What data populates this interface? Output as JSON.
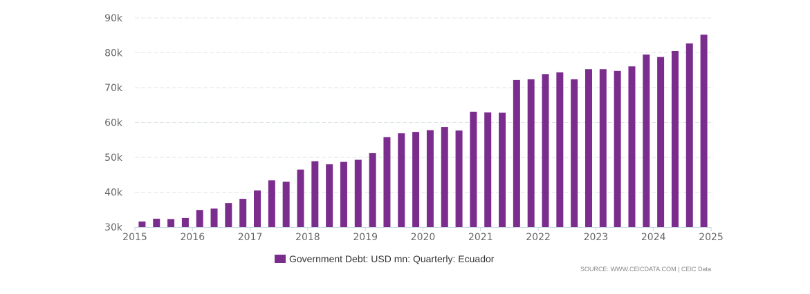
{
  "colors": {
    "bar": "#7b2d8e",
    "grid": "#dfe6ea",
    "axis": "#c8d6e0",
    "label": "#666666"
  },
  "chart_data": {
    "type": "bar",
    "title": "",
    "xlabel": "",
    "ylabel": "",
    "ylim": [
      30000,
      90000
    ],
    "y_ticks": [
      {
        "value": 30000,
        "label": "30k"
      },
      {
        "value": 40000,
        "label": "40k"
      },
      {
        "value": 50000,
        "label": "50k"
      },
      {
        "value": 60000,
        "label": "60k"
      },
      {
        "value": 70000,
        "label": "70k"
      },
      {
        "value": 80000,
        "label": "80k"
      },
      {
        "value": 90000,
        "label": "90k"
      }
    ],
    "x_ticks": [
      {
        "value": 2015,
        "label": "2015"
      },
      {
        "value": 2016,
        "label": "2016"
      },
      {
        "value": 2017,
        "label": "2017"
      },
      {
        "value": 2018,
        "label": "2018"
      },
      {
        "value": 2019,
        "label": "2019"
      },
      {
        "value": 2020,
        "label": "2020"
      },
      {
        "value": 2021,
        "label": "2021"
      },
      {
        "value": 2022,
        "label": "2022"
      },
      {
        "value": 2023,
        "label": "2023"
      },
      {
        "value": 2024,
        "label": "2024"
      },
      {
        "value": 2025,
        "label": "2025"
      }
    ],
    "x_range": [
      2015,
      2025
    ],
    "grid": true,
    "legend_position": "bottom-center",
    "series": [
      {
        "name": "Government Debt: USD mn: Quarterly: Ecuador",
        "points": [
          {
            "x": 2015.125,
            "y": 31600
          },
          {
            "x": 2015.375,
            "y": 32400
          },
          {
            "x": 2015.625,
            "y": 32300
          },
          {
            "x": 2015.875,
            "y": 32600
          },
          {
            "x": 2016.125,
            "y": 34900
          },
          {
            "x": 2016.375,
            "y": 35300
          },
          {
            "x": 2016.625,
            "y": 36900
          },
          {
            "x": 2016.875,
            "y": 38100
          },
          {
            "x": 2017.125,
            "y": 40500
          },
          {
            "x": 2017.375,
            "y": 43400
          },
          {
            "x": 2017.625,
            "y": 43000
          },
          {
            "x": 2017.875,
            "y": 46500
          },
          {
            "x": 2018.125,
            "y": 48900
          },
          {
            "x": 2018.375,
            "y": 48000
          },
          {
            "x": 2018.625,
            "y": 48700
          },
          {
            "x": 2018.875,
            "y": 49300
          },
          {
            "x": 2019.125,
            "y": 51200
          },
          {
            "x": 2019.375,
            "y": 55800
          },
          {
            "x": 2019.625,
            "y": 56900
          },
          {
            "x": 2019.875,
            "y": 57300
          },
          {
            "x": 2020.125,
            "y": 57800
          },
          {
            "x": 2020.375,
            "y": 58700
          },
          {
            "x": 2020.625,
            "y": 57700
          },
          {
            "x": 2020.875,
            "y": 63100
          },
          {
            "x": 2021.125,
            "y": 62900
          },
          {
            "x": 2021.375,
            "y": 62800
          },
          {
            "x": 2021.625,
            "y": 72200
          },
          {
            "x": 2021.875,
            "y": 72400
          },
          {
            "x": 2022.125,
            "y": 73900
          },
          {
            "x": 2022.375,
            "y": 74400
          },
          {
            "x": 2022.625,
            "y": 72400
          },
          {
            "x": 2022.875,
            "y": 75300
          },
          {
            "x": 2023.125,
            "y": 75300
          },
          {
            "x": 2023.375,
            "y": 74800
          },
          {
            "x": 2023.625,
            "y": 76100
          },
          {
            "x": 2023.875,
            "y": 79500
          },
          {
            "x": 2024.125,
            "y": 78800
          },
          {
            "x": 2024.375,
            "y": 80500
          },
          {
            "x": 2024.625,
            "y": 82700
          },
          {
            "x": 2024.875,
            "y": 85200
          }
        ]
      }
    ]
  },
  "legend": {
    "label": "Government Debt: USD mn: Quarterly: Ecuador"
  },
  "source": {
    "text": "SOURCE: WWW.CEICDATA.COM | CEIC Data"
  }
}
